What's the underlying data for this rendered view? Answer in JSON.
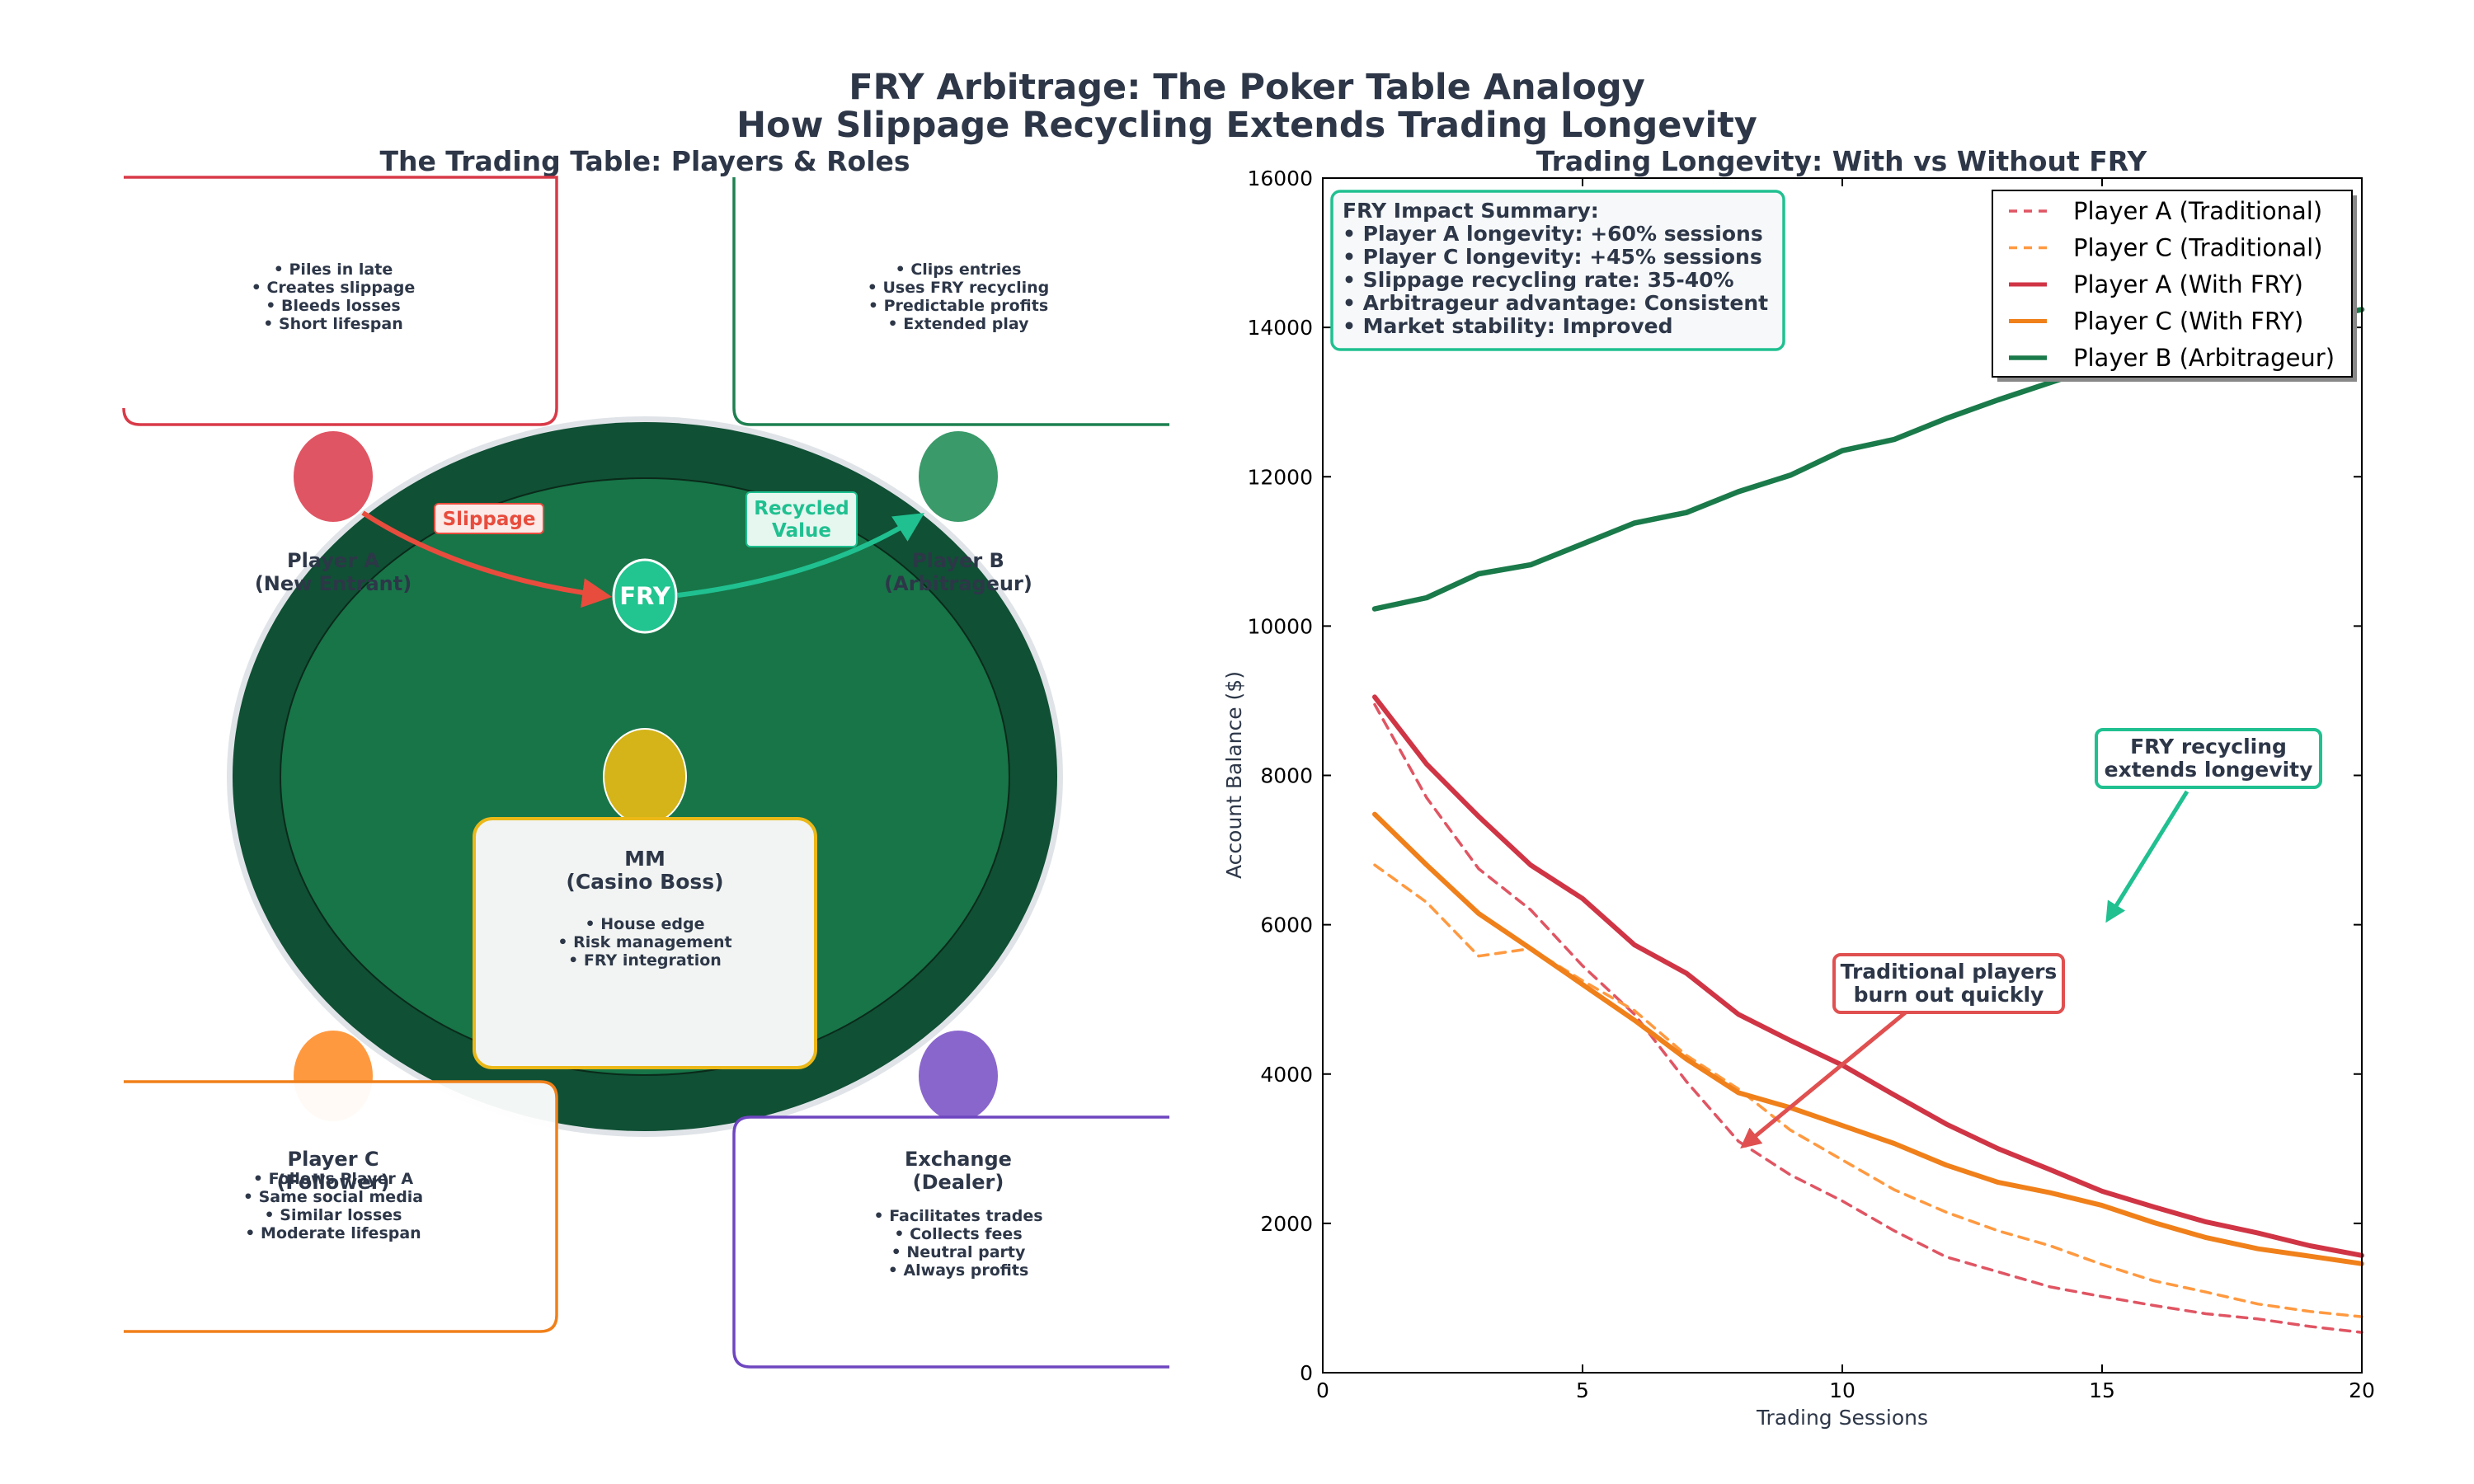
{
  "title": {
    "line1": "FRY Arbitrage: The Poker Table Analogy",
    "line2": "How Slippage Recycling Extends Trading Longevity"
  },
  "diagram": {
    "title": "The Trading Table: Players & Roles",
    "fry_label": "FRY",
    "slippage_label": "Slippage",
    "recycled_label_1": "Recycled",
    "recycled_label_2": "Value",
    "players": {
      "a": {
        "name": "Player A",
        "role": "(New Entrant)",
        "bullets": [
          "• Piles in late",
          "• Creates slippage",
          "• Bleeds losses",
          "• Short lifespan"
        ],
        "color": "#e05563"
      },
      "b": {
        "name": "Player B",
        "role": "(Arbitrageur)",
        "bullets": [
          "• Clips entries",
          "• Uses FRY recycling",
          "• Predictable profits",
          "• Extended play"
        ],
        "color": "#3a9a6a"
      },
      "c": {
        "name": "Player C",
        "role": "(Follower)",
        "bullets": [
          "• Follows Player A",
          "• Same social media",
          "• Similar losses",
          "• Moderate lifespan"
        ],
        "color": "#ff9940"
      },
      "exchange": {
        "name": "Exchange",
        "role": "(Dealer)",
        "bullets": [
          "• Facilitates trades",
          "• Collects fees",
          "• Neutral party",
          "• Always profits"
        ],
        "color": "#8966cc"
      },
      "mm": {
        "name": "MM",
        "role": "(Casino Boss)",
        "bullets": [
          "• House edge",
          "• Risk management",
          "• FRY integration"
        ],
        "color": "#d4b418"
      }
    }
  },
  "chart_data": {
    "type": "line",
    "title": "Trading Longevity: With vs Without FRY",
    "xlabel": "Trading Sessions",
    "ylabel": "Account Balance ($)",
    "xlim": [
      0,
      20
    ],
    "ylim": [
      0,
      16000
    ],
    "xticks": [
      "0",
      "5",
      "10",
      "15",
      "20"
    ],
    "yticks": [
      "0",
      "2000",
      "4000",
      "6000",
      "8000",
      "10000",
      "12000",
      "14000",
      "16000"
    ],
    "x": [
      1,
      2,
      3,
      4,
      5,
      6,
      7,
      8,
      9,
      10,
      11,
      12,
      13,
      14,
      15,
      16,
      17,
      18,
      19,
      20
    ],
    "series": [
      {
        "name": "Player A (Traditional)",
        "color": "#e05563",
        "dashed": true,
        "width": 2.5,
        "values": [
          8950,
          7700,
          6750,
          6200,
          5450,
          4800,
          3900,
          3100,
          2650,
          2300,
          1900,
          1550,
          1350,
          1150,
          1020,
          900,
          790,
          720,
          620,
          540
        ]
      },
      {
        "name": "Player C (Traditional)",
        "color": "#ff9940",
        "dashed": true,
        "width": 2.5,
        "values": [
          6800,
          6300,
          5580,
          5680,
          5250,
          4850,
          4250,
          3800,
          3250,
          2850,
          2450,
          2150,
          1900,
          1700,
          1450,
          1230,
          1080,
          920,
          820,
          750
        ]
      },
      {
        "name": "Player A (With FRY)",
        "color": "#d03545",
        "dashed": false,
        "width": 4,
        "values": [
          9050,
          8150,
          7450,
          6800,
          6350,
          5730,
          5350,
          4800,
          4450,
          4120,
          3720,
          3330,
          3000,
          2720,
          2430,
          2220,
          2020,
          1870,
          1700,
          1570
        ]
      },
      {
        "name": "Player C (With FRY)",
        "color": "#f0801a",
        "dashed": false,
        "width": 4,
        "values": [
          7480,
          6800,
          6150,
          5680,
          5200,
          4720,
          4200,
          3750,
          3550,
          3310,
          3070,
          2780,
          2550,
          2410,
          2240,
          2010,
          1810,
          1660,
          1560,
          1460
        ]
      },
      {
        "name": "Player B (Arbitrageur)",
        "color": "#1a7a4a",
        "dashed": false,
        "width": 4.5,
        "values": [
          10230,
          10380,
          10700,
          10820,
          11100,
          11380,
          11520,
          11800,
          12020,
          12350,
          12500,
          12780,
          13030,
          13260,
          13490,
          13660,
          13820,
          13960,
          14100,
          14240
        ]
      }
    ],
    "legend_position": "top-right",
    "summary": {
      "heading": "FRY Impact Summary:",
      "lines": [
        "• Player A longevity: +60% sessions",
        "• Player C longevity: +45% sessions",
        "• Slippage recycling rate: 35-40%",
        "• Arbitrageur advantage: Consistent",
        "• Market stability: Improved"
      ]
    },
    "annotations": [
      {
        "text": [
          "FRY recycling",
          "extends longevity"
        ],
        "target": [
          15,
          6000
        ],
        "color": "#20c090"
      },
      {
        "text": [
          "Traditional players",
          "burn out quickly"
        ],
        "target": [
          8,
          3000
        ],
        "color": "#e05050"
      }
    ]
  }
}
